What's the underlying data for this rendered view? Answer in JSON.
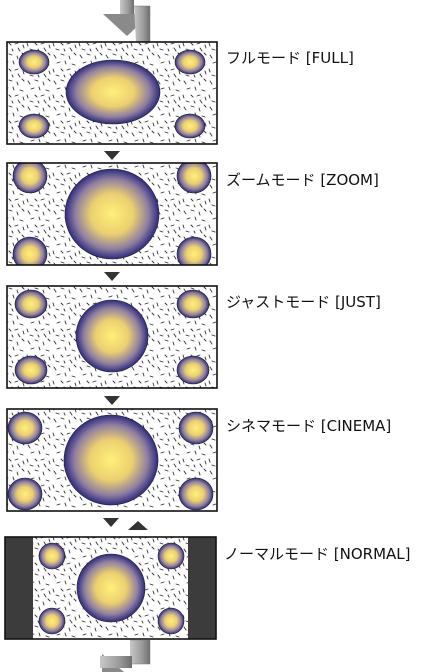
{
  "modes": [
    {
      "id": "full",
      "label": "フルモード [FULL]"
    },
    {
      "id": "zoom",
      "label": "ズームモード [ZOOM]"
    },
    {
      "id": "just",
      "label": "ジャストモード [JUST]"
    },
    {
      "id": "cinema",
      "label": "シネマモード [CINEMA]"
    },
    {
      "id": "normal",
      "label": "ノーマルモード [NORMAL]"
    }
  ],
  "colors": {
    "circle_center": "#fff07a",
    "circle_mid": "#e8c868",
    "circle_edge": "#2e2b80",
    "frame_border": "#111111",
    "speckle": "#333333",
    "side_bar": "#3c3c3c",
    "arrow": "#333333",
    "loop_arrow": "#9a9a9a"
  },
  "icons": {
    "cycle_arrow": "loop-arrow-icon",
    "step_arrow": "triangle-down-icon"
  }
}
